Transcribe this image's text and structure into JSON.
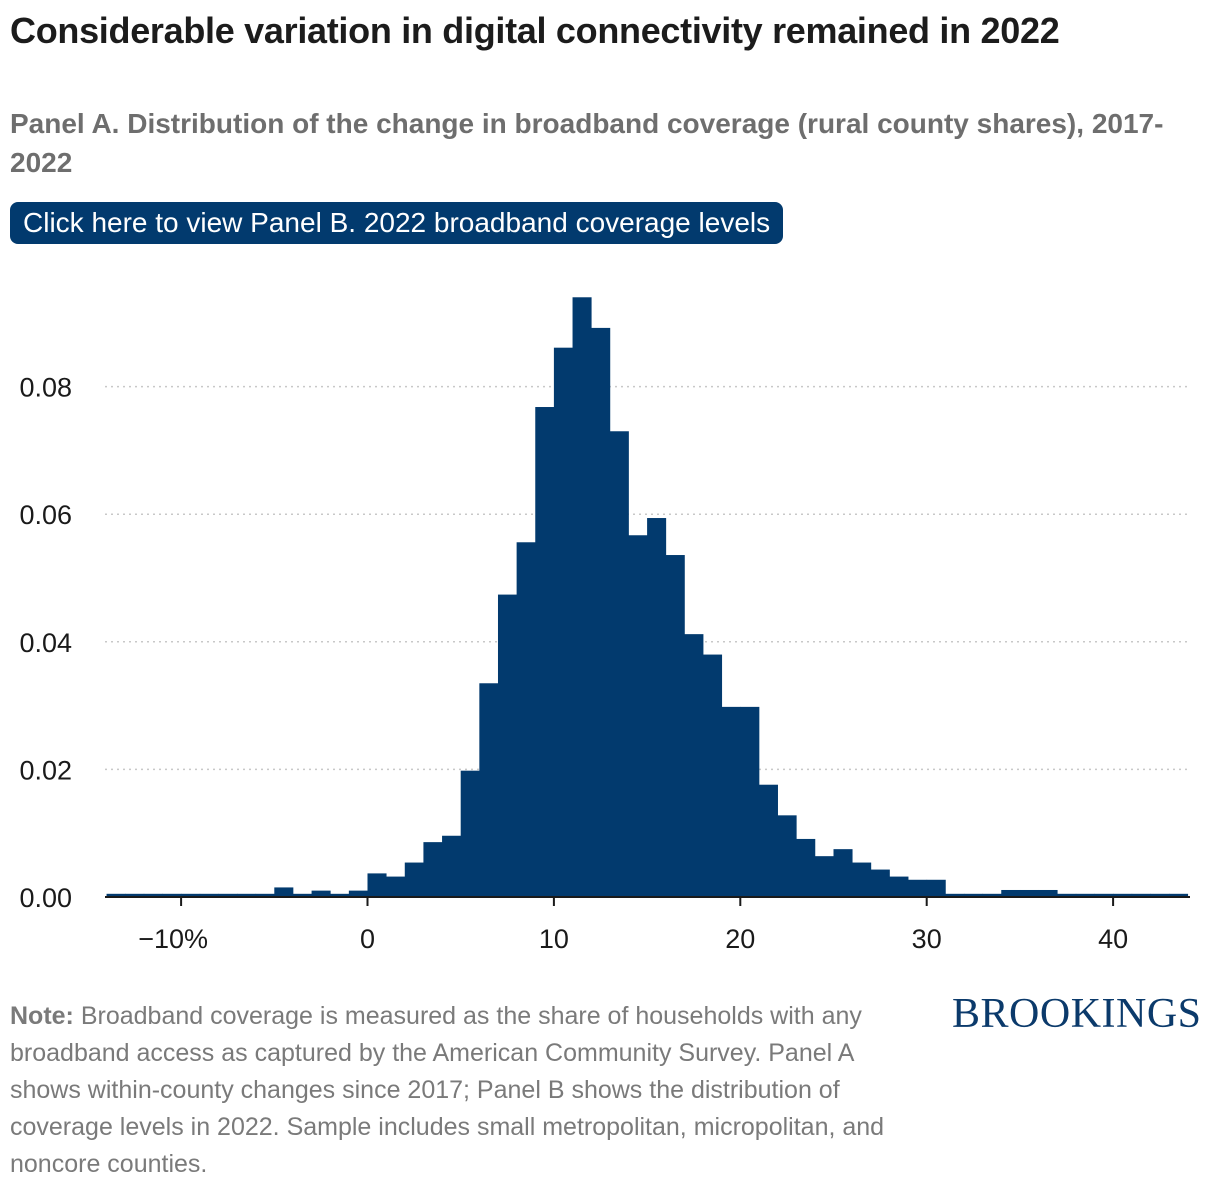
{
  "title": "Considerable variation in digital connectivity remained in 2022",
  "subtitle": "Panel A. Distribution of the change in broadband coverage (rural county shares), 2017-2022",
  "panel_button": "Click here to view Panel B. 2022 broadband coverage levels",
  "note": {
    "label": "Note:",
    "text": "Broadband coverage is measured as the share of households with any broadband access as captured by the American Community Survey. Panel A shows within-county changes since 2017; Panel B shows the distribution of coverage levels in 2022. Sample includes small metropolitan, micropolitan, and noncore counties."
  },
  "logo": "BROOKINGS",
  "colors": {
    "bar": "#023a6e",
    "button": "#023a6e",
    "grid": "#c8c8c8",
    "axis": "#1a1a1a"
  },
  "chart_data": {
    "type": "bar",
    "title": "",
    "xlabel": "",
    "ylabel": "",
    "bin_width": 1,
    "x_start": -14,
    "xlim": [
      -14,
      44
    ],
    "ylim": [
      0,
      0.096
    ],
    "grid": "horizontal dotted",
    "legend": "none",
    "x_ticks": [
      {
        "value": -10,
        "label": "−10%"
      },
      {
        "value": 0,
        "label": "0"
      },
      {
        "value": 10,
        "label": "10"
      },
      {
        "value": 20,
        "label": "20"
      },
      {
        "value": 30,
        "label": "30"
      },
      {
        "value": 40,
        "label": "40"
      }
    ],
    "y_ticks": [
      {
        "value": 0,
        "label": "0.00"
      },
      {
        "value": 0.02,
        "label": "0.02"
      },
      {
        "value": 0.04,
        "label": "0.04"
      },
      {
        "value": 0.06,
        "label": "0.06"
      },
      {
        "value": 0.08,
        "label": "0.08"
      }
    ],
    "values": [
      0.0005,
      0.0005,
      0.0005,
      0.0005,
      0.0005,
      0.0005,
      0.0005,
      0.0005,
      0.0005,
      0.0015,
      0.0005,
      0.001,
      0.0005,
      0.001,
      0.0037,
      0.0032,
      0.0054,
      0.0086,
      0.0096,
      0.0198,
      0.0335,
      0.0474,
      0.0556,
      0.0768,
      0.0861,
      0.094,
      0.0892,
      0.073,
      0.0567,
      0.0594,
      0.0536,
      0.0412,
      0.038,
      0.0298,
      0.0298,
      0.0176,
      0.0128,
      0.0091,
      0.0064,
      0.0075,
      0.0054,
      0.0043,
      0.0032,
      0.0027,
      0.0027,
      0.0005,
      0.0005,
      0.0005,
      0.0011,
      0.0011,
      0.0011,
      0.0005,
      0.0005,
      0.0005,
      0.0005,
      0.0005,
      0.0005,
      0.0005
    ]
  }
}
